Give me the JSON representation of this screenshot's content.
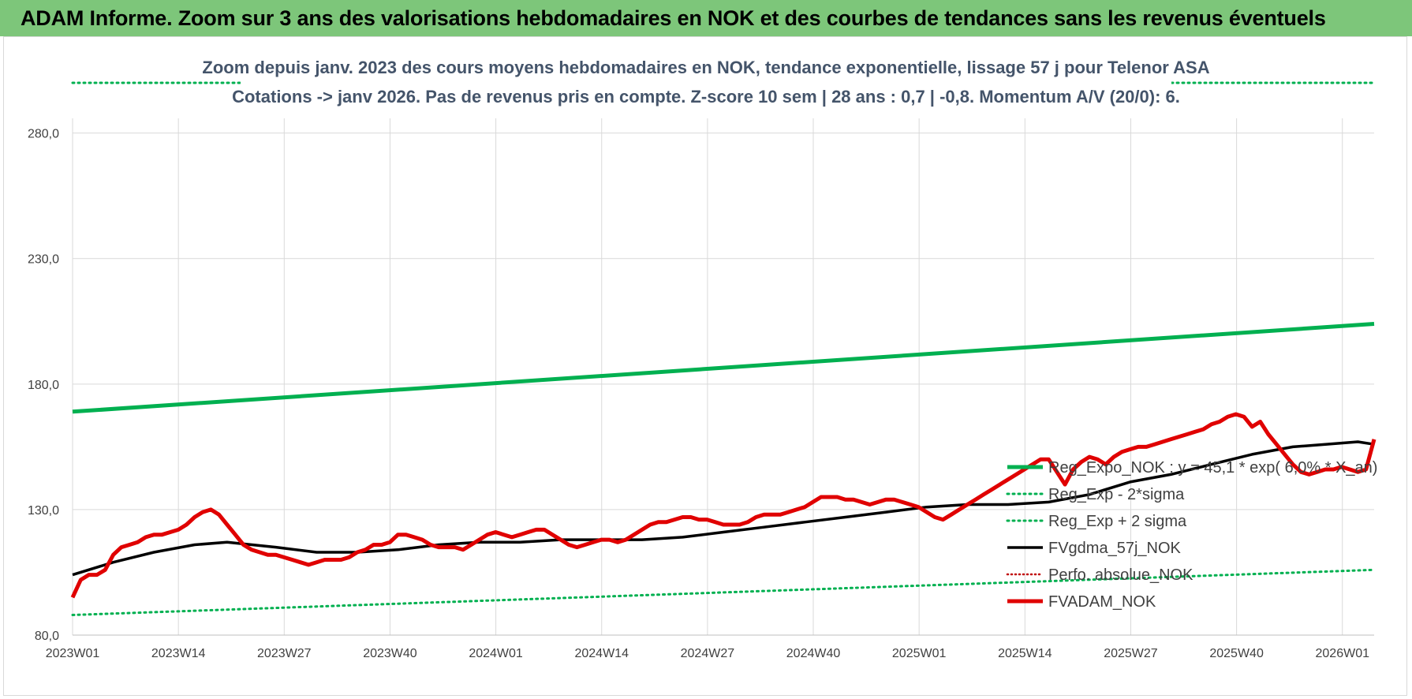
{
  "header": {
    "title": "ADAM Informe. Zoom sur 3 ans des valorisations hebdomadaires en NOK et des courbes de tendances sans les revenus éventuels"
  },
  "chart_data": {
    "type": "line",
    "title_line1": "Zoom depuis janv. 2023 des cours moyens hebdomadaires en NOK, tendance exponentielle, lissage 57 j pour Telenor ASA",
    "title_line2": "Cotations -> janv 2026. Pas de revenus pris en compte. Z-score 10 sem | 28 ans : 0,7 | -0,8. Momentum A/V (20/0): 6.",
    "x_tick_labels": [
      "2023W01",
      "2023W14",
      "2023W27",
      "2023W40",
      "2024W01",
      "2024W14",
      "2024W27",
      "2024W40",
      "2025W01",
      "2025W14",
      "2025W27",
      "2025W40",
      "2026W01"
    ],
    "y_tick_labels": [
      "80,0",
      "130,0",
      "180,0",
      "230,0",
      "280,0"
    ],
    "y_ticks": [
      80,
      130,
      180,
      230,
      280
    ],
    "ylim": [
      80,
      300
    ],
    "xlim": [
      0,
      160
    ],
    "grid": true,
    "legend_position": "right",
    "colors": {
      "reg_expo": "#00b050",
      "sigma_lines": "#00b050",
      "fvgdma": "#000000",
      "perfo": "#c00000",
      "fvadam": "#e00000",
      "grid": "#d9d9d9"
    },
    "series": [
      {
        "name": "Reg_Expo_NOK : y = 45,1 * exp( 6,0% * X_an)",
        "style": "solid-thick",
        "x": [
          0,
          160
        ],
        "y": [
          169,
          204
        ]
      },
      {
        "name": "Reg_Exp - 2*sigma",
        "style": "dotted",
        "x": [
          0,
          160
        ],
        "y": [
          88,
          106
        ]
      },
      {
        "name": "Reg_Exp + 2 sigma",
        "style": "dotted",
        "x": [
          0,
          160
        ],
        "y": [
          300,
          300
        ]
      },
      {
        "name": "FVgdma_57j_NOK",
        "style": "solid",
        "x": [
          0,
          5,
          10,
          15,
          19,
          25,
          30,
          35,
          40,
          45,
          50,
          55,
          60,
          65,
          70,
          75,
          80,
          85,
          90,
          95,
          100,
          105,
          110,
          115,
          120,
          125,
          130,
          135,
          140,
          145,
          150,
          154,
          158,
          160
        ],
        "y": [
          104,
          109,
          113,
          116,
          117,
          115,
          113,
          113,
          114,
          116,
          117,
          117,
          118,
          118,
          118,
          119,
          121,
          123,
          125,
          127,
          129,
          131,
          132,
          132,
          133,
          136,
          141,
          144,
          148,
          152,
          155,
          156,
          157,
          156
        ]
      },
      {
        "name": "Perfo. absolue_NOK",
        "style": "dotted-red",
        "x": [],
        "y": []
      },
      {
        "name": "FVADAM_NOK",
        "style": "solid-thick",
        "x": [
          0,
          1,
          2,
          3,
          4,
          5,
          6,
          7,
          8,
          9,
          10,
          11,
          12,
          13,
          14,
          15,
          16,
          17,
          18,
          19,
          20,
          21,
          22,
          23,
          24,
          25,
          26,
          27,
          28,
          29,
          30,
          31,
          32,
          33,
          34,
          35,
          36,
          37,
          38,
          39,
          40,
          41,
          42,
          43,
          44,
          45,
          46,
          47,
          48,
          49,
          50,
          51,
          52,
          53,
          54,
          55,
          56,
          57,
          58,
          59,
          60,
          61,
          62,
          63,
          64,
          65,
          66,
          67,
          68,
          69,
          70,
          71,
          72,
          73,
          74,
          75,
          76,
          77,
          78,
          79,
          80,
          81,
          82,
          83,
          84,
          85,
          86,
          87,
          88,
          89,
          90,
          91,
          92,
          93,
          94,
          95,
          96,
          97,
          98,
          99,
          100,
          101,
          102,
          103,
          104,
          105,
          106,
          107,
          108,
          109,
          110,
          111,
          112,
          113,
          114,
          115,
          116,
          117,
          118,
          119,
          120,
          121,
          122,
          123,
          124,
          125,
          126,
          127,
          128,
          129,
          130,
          131,
          132,
          133,
          134,
          135,
          136,
          137,
          138,
          139,
          140,
          141,
          142,
          143,
          144,
          145,
          146,
          147,
          148,
          149,
          150,
          151,
          152,
          153,
          154,
          155,
          156,
          157,
          158,
          159,
          160
        ],
        "y": [
          95,
          102,
          104,
          104,
          106,
          112,
          115,
          116,
          117,
          119,
          120,
          120,
          121,
          122,
          124,
          127,
          129,
          130,
          128,
          124,
          120,
          116,
          114,
          113,
          112,
          112,
          111,
          110,
          109,
          108,
          109,
          110,
          110,
          110,
          111,
          113,
          114,
          116,
          116,
          117,
          120,
          120,
          119,
          118,
          116,
          115,
          115,
          115,
          114,
          116,
          118,
          120,
          121,
          120,
          119,
          120,
          121,
          122,
          122,
          120,
          118,
          116,
          115,
          116,
          117,
          118,
          118,
          117,
          118,
          120,
          122,
          124,
          125,
          125,
          126,
          127,
          127,
          126,
          126,
          125,
          124,
          124,
          124,
          125,
          127,
          128,
          128,
          128,
          129,
          130,
          131,
          133,
          135,
          135,
          135,
          134,
          134,
          133,
          132,
          133,
          134,
          134,
          133,
          132,
          131,
          129,
          127,
          126,
          128,
          130,
          132,
          134,
          136,
          138,
          140,
          142,
          144,
          146,
          148,
          150,
          150,
          145,
          140,
          146,
          149,
          151,
          150,
          148,
          151,
          153,
          154,
          155,
          155,
          156,
          157,
          158,
          159,
          160,
          161,
          162,
          164,
          165,
          167,
          168,
          167,
          163,
          165,
          160,
          156,
          152,
          148,
          145,
          144,
          145,
          146,
          146,
          147,
          146,
          145,
          146,
          158
        ]
      }
    ]
  }
}
